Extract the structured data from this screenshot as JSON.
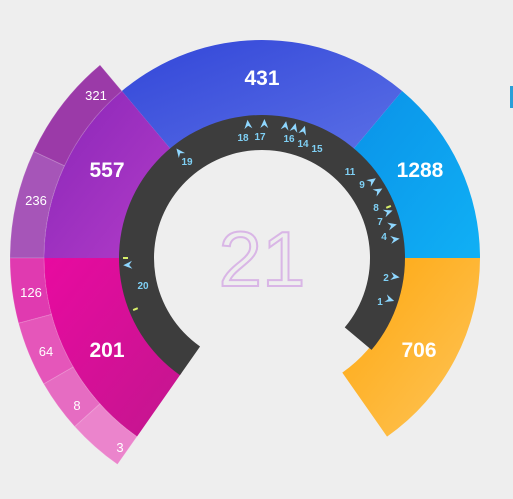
{
  "center": {
    "value": "21"
  },
  "colors": {
    "ring": "#3d3d3d",
    "marker": "#8fd7ff",
    "accent_mark": "#d8f06a",
    "outer_purple": "#a855b5",
    "outer_pink": "#e25ab8"
  },
  "chart_data": {
    "type": "donut",
    "segments": [
      {
        "label": "706",
        "value": 706,
        "color": "#fbb024"
      },
      {
        "label": "1288",
        "value": 1288,
        "color": "#0aa2f2"
      },
      {
        "label": "431",
        "value": 431,
        "color": "#3b55e0"
      },
      {
        "label": "557",
        "value": 557,
        "color": "#9e2fbf"
      },
      {
        "label": "201",
        "value": 201,
        "color": "#ee1aa8"
      }
    ],
    "outer_segments": [
      {
        "label": "321",
        "value": 321,
        "parent": "557"
      },
      {
        "label": "236",
        "value": 236,
        "parent": "557"
      },
      {
        "label": "126",
        "value": 126,
        "parent": "201"
      },
      {
        "label": "64",
        "value": 64,
        "parent": "201"
      },
      {
        "label": "8",
        "value": 8,
        "parent": "201"
      },
      {
        "label": "3",
        "value": 3,
        "parent": "201"
      }
    ],
    "ring_markers": [
      "1",
      "2",
      "4",
      "7",
      "8",
      "9",
      "11",
      "15",
      "14",
      "16",
      "17",
      "18",
      "19",
      "20"
    ]
  }
}
